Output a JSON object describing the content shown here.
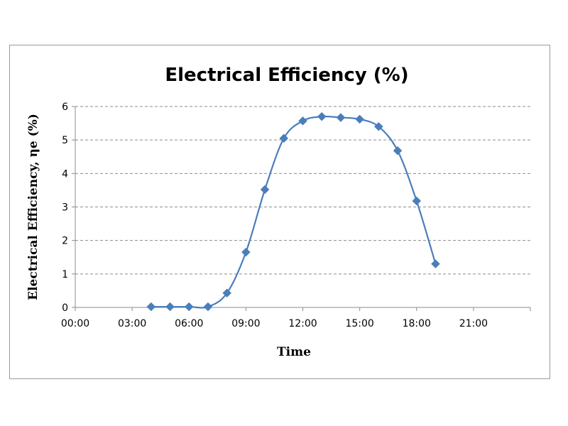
{
  "chart_data": {
    "type": "line",
    "title": "Electrical Efficiency (%)",
    "xlabel": "Time",
    "ylabel": "Electrical Efficiency, ηe (%)",
    "x_unit": "hours",
    "xlim": [
      0,
      24
    ],
    "ylim": [
      0,
      6
    ],
    "x_ticks": [
      0,
      3,
      6,
      9,
      12,
      15,
      18,
      21
    ],
    "x_tick_labels": [
      "00:00",
      "03:00",
      "06:00",
      "09:00",
      "12:00",
      "15:00",
      "18:00",
      "21:00"
    ],
    "y_ticks": [
      0,
      1,
      2,
      3,
      4,
      5,
      6
    ],
    "y_tick_labels": [
      "0",
      "1",
      "2",
      "3",
      "4",
      "5",
      "6"
    ],
    "grid": "horizontal dashed",
    "legend": "none",
    "series": [
      {
        "color": "#4a7ebb",
        "marker": "diamond",
        "smooth": true,
        "x": [
          4,
          5,
          6,
          7,
          8,
          9,
          10,
          11,
          12,
          13,
          14,
          15,
          16,
          17,
          18,
          19
        ],
        "y": [
          0.02,
          0.02,
          0.02,
          0.02,
          0.43,
          1.65,
          3.52,
          5.05,
          5.57,
          5.7,
          5.67,
          5.62,
          5.4,
          4.68,
          3.18,
          1.3
        ]
      }
    ]
  }
}
